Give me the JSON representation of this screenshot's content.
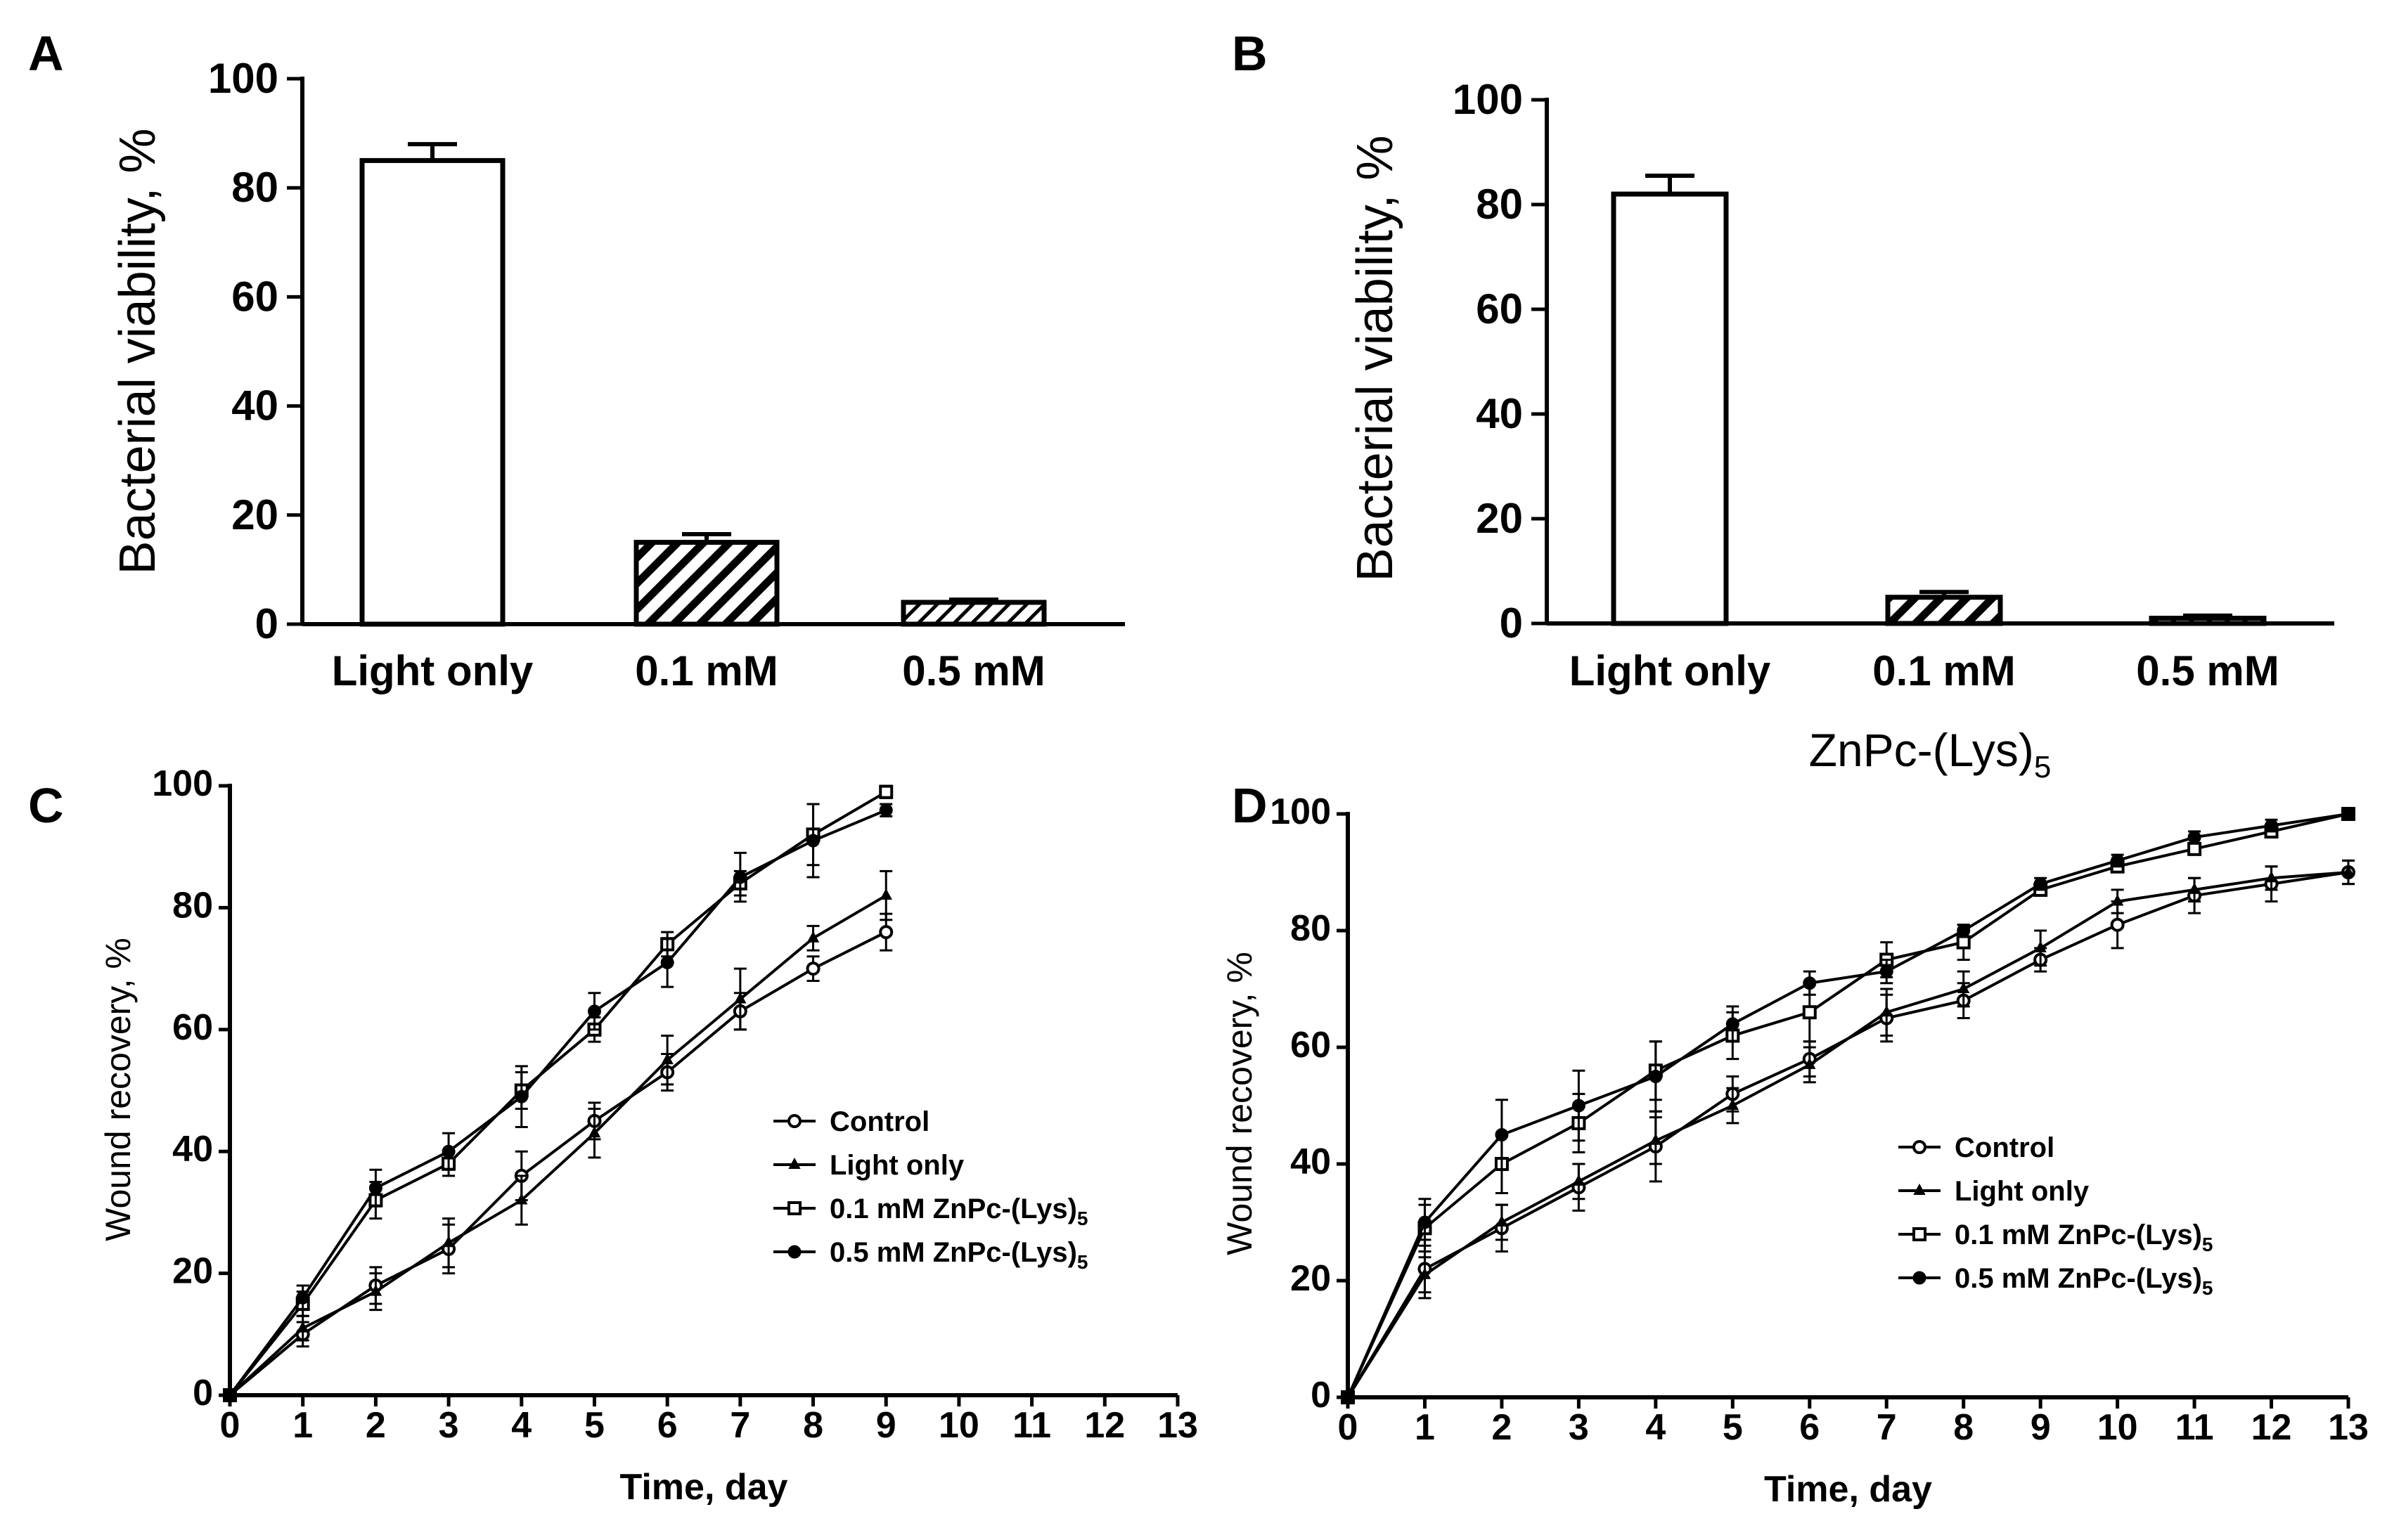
{
  "chart_data": [
    {
      "panel": "A",
      "type": "bar",
      "ylabel": "Bacterial viability, %",
      "xlabel": "",
      "ylim": [
        0,
        100
      ],
      "yticks": [
        0,
        20,
        40,
        60,
        80,
        100
      ],
      "categories": [
        "Light only",
        "0.1 mM",
        "0.5 mM"
      ],
      "values": [
        85,
        15,
        4
      ],
      "errors": [
        3,
        1.5,
        0.5
      ],
      "patterns": [
        "none",
        "dense-hatch",
        "light-hatch"
      ]
    },
    {
      "panel": "B",
      "type": "bar",
      "ylabel": "Bacterial viability, %",
      "xlabel": "ZnPc-(Lys)",
      "xlabel_sub": "5",
      "ylim": [
        0,
        100
      ],
      "yticks": [
        0,
        20,
        40,
        60,
        80,
        100
      ],
      "categories": [
        "Light only",
        "0.1 mM",
        "0.5 mM"
      ],
      "values": [
        82,
        5,
        1
      ],
      "errors": [
        3.5,
        1,
        0.5
      ],
      "patterns": [
        "none",
        "dense-hatch",
        "light-hatch"
      ]
    },
    {
      "panel": "C",
      "type": "line",
      "ylabel": "Wound recovery, %",
      "xlabel": "Time, day",
      "xlim": [
        0,
        13
      ],
      "ylim": [
        0,
        100
      ],
      "xticks": [
        0,
        1,
        2,
        3,
        4,
        5,
        6,
        7,
        8,
        9,
        10,
        11,
        12,
        13
      ],
      "yticks": [
        0,
        20,
        40,
        60,
        80,
        100
      ],
      "series": [
        {
          "name": "Control",
          "marker": "open-circle",
          "legend_main": "Control",
          "legend_sub": "",
          "x": [
            0,
            1,
            2,
            3,
            4,
            5,
            6,
            7,
            8,
            9
          ],
          "y": [
            0,
            10,
            18,
            24,
            36,
            45,
            53,
            63,
            70,
            76
          ],
          "err": [
            0,
            2,
            3,
            4,
            4,
            3,
            3,
            3,
            2,
            3
          ]
        },
        {
          "name": "Light only",
          "marker": "triangle",
          "legend_main": "Light only",
          "legend_sub": "",
          "x": [
            0,
            1,
            2,
            3,
            4,
            5,
            6,
            7,
            8,
            9
          ],
          "y": [
            0,
            11,
            17,
            25,
            32,
            43,
            55,
            65,
            75,
            82
          ],
          "err": [
            0,
            2,
            3,
            4,
            4,
            4,
            4,
            5,
            2,
            4
          ]
        },
        {
          "name": "0.1 mM ZnPc-(Lys)5",
          "marker": "open-square",
          "legend_main": "0.1 mM ZnPc-(Lys)",
          "legend_sub": "5",
          "x": [
            0,
            1,
            2,
            3,
            4,
            5,
            6,
            7,
            8,
            9
          ],
          "y": [
            0,
            15,
            32,
            38,
            50,
            60,
            74,
            84,
            92,
            99
          ],
          "err": [
            0,
            2,
            3,
            2,
            3,
            2,
            2,
            2,
            5,
            1
          ]
        },
        {
          "name": "0.5 mM ZnPc-(Lys)5",
          "marker": "filled-circle",
          "legend_main": "0.5 mM ZnPc-(Lys)",
          "legend_sub": "5",
          "x": [
            0,
            1,
            2,
            3,
            4,
            5,
            6,
            7,
            8,
            9
          ],
          "y": [
            0,
            16,
            34,
            40,
            49,
            63,
            71,
            85,
            91,
            96
          ],
          "err": [
            0,
            2,
            3,
            3,
            5,
            3,
            4,
            4,
            6,
            1
          ]
        }
      ]
    },
    {
      "panel": "D",
      "type": "line",
      "ylabel": "Wound recovery, %",
      "xlabel": "Time, day",
      "xlim": [
        0,
        13
      ],
      "ylim": [
        0,
        100
      ],
      "xticks": [
        0,
        1,
        2,
        3,
        4,
        5,
        6,
        7,
        8,
        9,
        10,
        11,
        12,
        13
      ],
      "yticks": [
        0,
        20,
        40,
        60,
        80,
        100
      ],
      "series": [
        {
          "name": "Control",
          "marker": "open-circle",
          "legend_main": "Control",
          "legend_sub": "",
          "x": [
            0,
            1,
            2,
            3,
            4,
            5,
            6,
            7,
            8,
            9,
            10,
            11,
            12,
            13
          ],
          "y": [
            0,
            22,
            29,
            36,
            43,
            52,
            58,
            65,
            68,
            75,
            81,
            86,
            88,
            90
          ],
          "err": [
            0,
            5,
            4,
            4,
            6,
            3,
            3,
            4,
            3,
            2,
            4,
            3,
            3,
            2
          ]
        },
        {
          "name": "Light only",
          "marker": "triangle",
          "legend_main": "Light only",
          "legend_sub": "",
          "x": [
            0,
            1,
            2,
            3,
            4,
            5,
            6,
            7,
            8,
            9,
            10,
            11,
            12,
            13
          ],
          "y": [
            0,
            21,
            30,
            37,
            44,
            50,
            57,
            66,
            70,
            77,
            85,
            87,
            89,
            90
          ],
          "err": [
            0,
            3,
            3,
            3,
            4,
            3,
            3,
            4,
            3,
            3,
            2,
            2,
            2,
            2
          ]
        },
        {
          "name": "0.1 mM ZnPc-(Lys)5",
          "marker": "open-square",
          "legend_main": "0.1 mM ZnPc-(Lys)",
          "legend_sub": "5",
          "x": [
            0,
            1,
            2,
            3,
            4,
            5,
            6,
            7,
            8,
            9,
            10,
            11,
            12,
            13
          ],
          "y": [
            0,
            29,
            40,
            47,
            56,
            62,
            66,
            75,
            78,
            87,
            91,
            94,
            97,
            100
          ],
          "err": [
            0,
            4,
            5,
            5,
            5,
            4,
            5,
            3,
            3,
            1,
            1,
            1,
            1,
            0
          ]
        },
        {
          "name": "0.5 mM ZnPc-(Lys)5",
          "marker": "filled-circle",
          "legend_main": "0.5 mM ZnPc-(Lys)",
          "legend_sub": "5",
          "x": [
            0,
            1,
            2,
            3,
            4,
            5,
            6,
            7,
            8,
            9,
            10,
            11,
            12,
            13
          ],
          "y": [
            0,
            30,
            45,
            50,
            55,
            64,
            71,
            73,
            80,
            88,
            92,
            96,
            98,
            100
          ],
          "err": [
            0,
            4,
            6,
            6,
            6,
            3,
            2,
            2,
            1,
            1,
            1,
            1,
            1,
            0
          ]
        }
      ]
    }
  ]
}
